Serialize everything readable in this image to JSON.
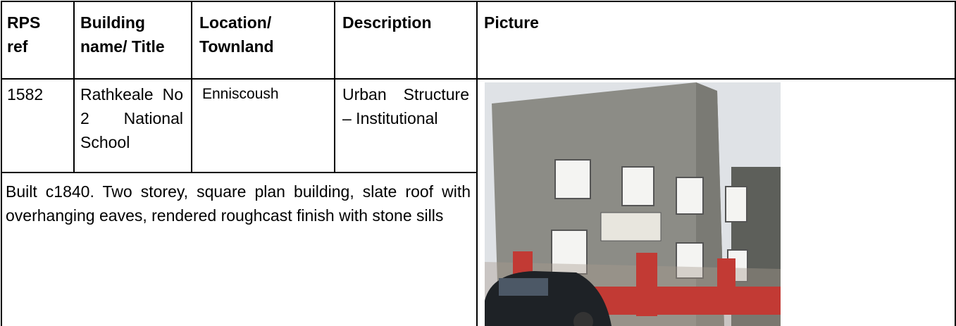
{
  "table": {
    "headers": [
      "RPS ref",
      "Building name/ Title",
      "Location/ Townland",
      "Description",
      "Picture"
    ],
    "rows": [
      [
        "1582",
        "Rathkeale No 2 National School",
        "Enniscoush",
        "Urban Structure – Institutional"
      ]
    ],
    "description": "Built c1840. Two storey, square plan building, slate roof with overhanging eaves, rendered roughcast finish with stone sills"
  }
}
